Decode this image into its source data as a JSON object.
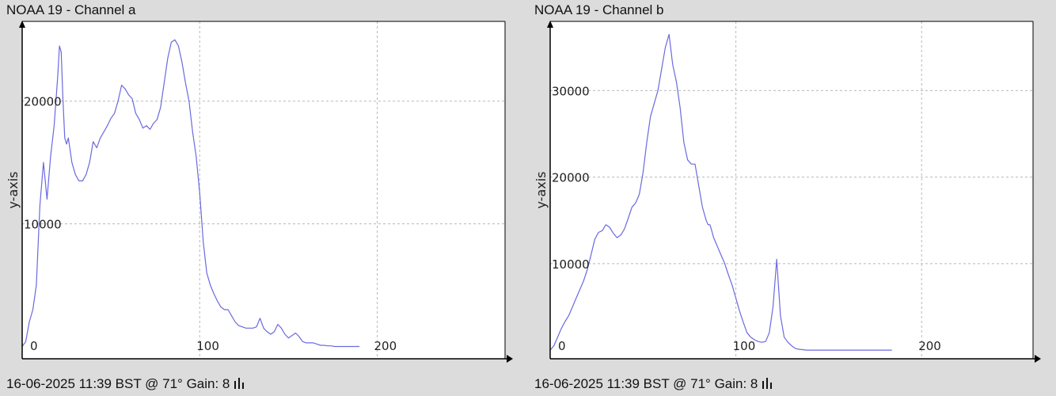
{
  "colors": {
    "background": "#dcdcdc",
    "plot_background": "#ffffff",
    "line": "#6a6adf",
    "grid": "#b8b8b8",
    "axis": "#000000"
  },
  "panels": [
    {
      "title": "NOAA 19 - Channel a",
      "footer": "16-06-2025 11:39 BST @ 71° Gain: 8",
      "footer_icon": "signal-bars-icon"
    },
    {
      "title": "NOAA 19 - Channel b",
      "footer": "16-06-2025 11:39 BST @ 71° Gain: 8",
      "footer_icon": "signal-bars-icon"
    }
  ],
  "chart_data": [
    {
      "type": "line",
      "title": "NOAA 19 - Channel a",
      "xlabel": "",
      "ylabel": "y-axis",
      "xlim": [
        0,
        272
      ],
      "ylim": [
        -1000,
        26500
      ],
      "xticks": [
        0,
        100,
        200
      ],
      "yticks": [
        10000,
        20000
      ],
      "grid": true,
      "series": [
        {
          "x": [
            0,
            2,
            4,
            6,
            8,
            10,
            12,
            14,
            16,
            18,
            20,
            21,
            22,
            23,
            24,
            25,
            26,
            27,
            28,
            30,
            32,
            34,
            36,
            38,
            40,
            42,
            44,
            46,
            48,
            50,
            52,
            54,
            56,
            58,
            60,
            62,
            64,
            66,
            68,
            70,
            72,
            74,
            76,
            78,
            80,
            82,
            84,
            86,
            88,
            90,
            92,
            94,
            96,
            98,
            100,
            102,
            104,
            106,
            108,
            110,
            112,
            114,
            116,
            118,
            120,
            122,
            124,
            126,
            128,
            130,
            132,
            134,
            136,
            138,
            140,
            142,
            144,
            146,
            148,
            150,
            152,
            154,
            156,
            158,
            160,
            162,
            164,
            166,
            168,
            170,
            172,
            174,
            176,
            178,
            180,
            182,
            184,
            186,
            188,
            190
          ],
          "values": [
            0,
            400,
            2000,
            3000,
            5000,
            11500,
            15000,
            12000,
            15500,
            18000,
            22000,
            24500,
            24000,
            20000,
            17000,
            16500,
            17000,
            16000,
            15000,
            14000,
            13500,
            13500,
            14000,
            15000,
            16700,
            16200,
            17000,
            17500,
            18000,
            18600,
            19000,
            20000,
            21300,
            21000,
            20500,
            20200,
            19000,
            18500,
            17800,
            18000,
            17700,
            18200,
            18500,
            19500,
            21500,
            23500,
            24800,
            25000,
            24500,
            23200,
            21500,
            20000,
            17500,
            15500,
            12500,
            8500,
            6000,
            5000,
            4300,
            3700,
            3200,
            3000,
            3000,
            2500,
            2000,
            1700,
            1600,
            1500,
            1500,
            1500,
            1600,
            2300,
            1500,
            1200,
            1000,
            1200,
            1800,
            1500,
            1000,
            700,
            900,
            1100,
            800,
            400,
            300,
            300,
            300,
            200,
            100,
            100,
            50,
            50,
            0,
            0,
            0,
            0,
            0,
            0,
            0,
            0
          ]
        }
      ]
    },
    {
      "type": "line",
      "title": "NOAA 19 - Channel b",
      "xlabel": "",
      "ylabel": "y-axis",
      "xlim": [
        0,
        260
      ],
      "ylim": [
        -1000,
        38000
      ],
      "xticks": [
        0,
        100,
        200
      ],
      "yticks": [
        10000,
        20000,
        30000
      ],
      "grid": true,
      "series": [
        {
          "x": [
            0,
            2,
            4,
            6,
            8,
            10,
            12,
            14,
            16,
            18,
            20,
            22,
            24,
            26,
            28,
            30,
            32,
            34,
            36,
            38,
            40,
            42,
            44,
            46,
            48,
            50,
            52,
            54,
            56,
            58,
            60,
            62,
            64,
            66,
            68,
            70,
            72,
            74,
            76,
            78,
            80,
            82,
            84,
            85,
            86,
            87,
            88,
            90,
            92,
            94,
            96,
            98,
            100,
            102,
            104,
            106,
            108,
            110,
            112,
            114,
            116,
            118,
            120,
            122,
            124,
            126,
            128,
            130,
            132,
            134,
            136,
            138,
            140,
            142,
            144,
            146,
            148,
            150,
            152,
            154,
            156,
            158,
            160,
            162,
            164,
            165,
            166,
            167,
            168,
            170,
            172,
            174,
            176,
            178,
            180,
            182,
            184
          ],
          "values": [
            0,
            500,
            1500,
            2500,
            3300,
            4000,
            5000,
            6000,
            7000,
            8000,
            9300,
            11000,
            12800,
            13600,
            13800,
            14500,
            14200,
            13500,
            13000,
            13300,
            14000,
            15200,
            16500,
            17000,
            18000,
            20500,
            24000,
            27000,
            28500,
            30000,
            32500,
            35000,
            36500,
            33000,
            31000,
            28000,
            24000,
            22000,
            21500,
            21500,
            19000,
            16500,
            15000,
            14500,
            14500,
            13800,
            13000,
            12000,
            11000,
            10000,
            8700,
            7500,
            6000,
            4500,
            3200,
            2000,
            1500,
            1200,
            1000,
            900,
            1000,
            2000,
            5000,
            10500,
            4000,
            1500,
            900,
            500,
            200,
            100,
            50,
            0,
            0,
            0,
            0,
            0,
            0,
            0,
            0,
            0,
            0,
            0,
            0,
            0,
            0,
            0,
            0,
            0,
            0,
            0,
            0,
            0,
            0,
            0,
            0,
            0,
            0
          ]
        }
      ]
    }
  ]
}
